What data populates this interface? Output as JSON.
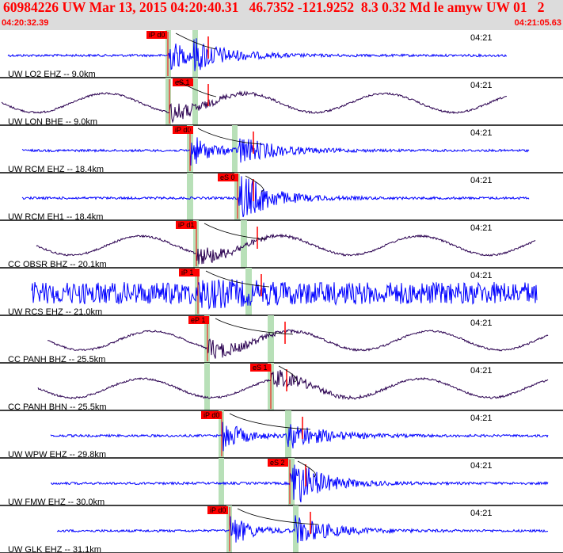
{
  "header": {
    "title": "60984226 UW Mar 13, 2015 04:20:40.31   46.7352 -121.9252  8.3 0.32 Md le amyw UW 01   2",
    "start_time": "04:20:32.39",
    "end_time": "04:21:05.63"
  },
  "colors": {
    "header_bg": "#dcdcdc",
    "header_text": "#ff0000",
    "trace_blue": "#0000ff",
    "trace_dark": "#2a0050",
    "pick_flag": "#ff0000",
    "window_band": "#b8e0b8",
    "separator": "#000000"
  },
  "time_tick_label": "04:21",
  "traces": [
    {
      "label": "UW LO2 EHZ -- 9.0km",
      "pick": "iP d0",
      "color": "blue",
      "kind": "sharp"
    },
    {
      "label": "UW LON BHE -- 9.0km",
      "pick": "eS 1",
      "color": "dark",
      "kind": "wave"
    },
    {
      "label": "UW RCM EHZ -- 18.4km",
      "pick": "iP d0",
      "color": "blue",
      "kind": "sharp"
    },
    {
      "label": "UW RCM EH1 -- 18.4km",
      "pick": "eS 0",
      "color": "blue",
      "kind": "sharp"
    },
    {
      "label": "CC OBSR BHZ -- 20.1km",
      "pick": "iP d1",
      "color": "dark",
      "kind": "wave"
    },
    {
      "label": "UW RCS EHZ -- 21.0km",
      "pick": "iP 1",
      "color": "blue",
      "kind": "noisy"
    },
    {
      "label": "CC PANH BHZ -- 25.5km",
      "pick": "eP 1",
      "color": "dark",
      "kind": "wave"
    },
    {
      "label": "CC PANH BHN -- 25.5km",
      "pick": "eS 1",
      "color": "dark",
      "kind": "wave"
    },
    {
      "label": "UW WPW EHZ -- 29.8km",
      "pick": "iP d0",
      "color": "blue",
      "kind": "sharp"
    },
    {
      "label": "UW FMW EHZ -- 30.0km",
      "pick": "eS 2",
      "color": "blue",
      "kind": "sharp"
    },
    {
      "label": "UW GLK EHZ -- 31.1km",
      "pick": "iP d0",
      "color": "blue",
      "kind": "sharp"
    }
  ]
}
